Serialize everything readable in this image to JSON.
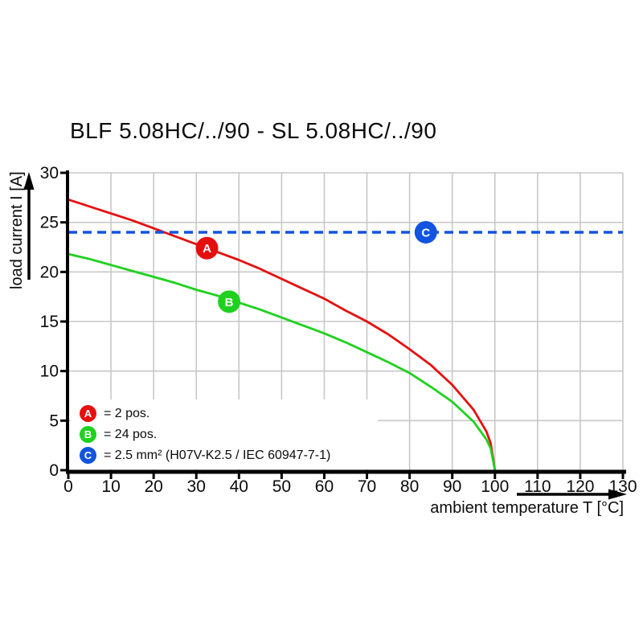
{
  "title": "BLF 5.08HC/../90 - SL 5.08HC/../90",
  "colors": {
    "red": "#e60f0f",
    "green": "#1fd11f",
    "blue": "#1254e0",
    "grid": "#c8c8c8",
    "axis": "#000000",
    "text": "#0b0b0b"
  },
  "x_axis": {
    "label": "ambient temperature T [°C]",
    "ticks": [
      0,
      10,
      20,
      30,
      40,
      50,
      60,
      70,
      80,
      90,
      100,
      110,
      120,
      130
    ]
  },
  "y_axis": {
    "label": "load current I [A]",
    "ticks": [
      0,
      5,
      10,
      15,
      20,
      25,
      30
    ]
  },
  "legend": {
    "items": [
      {
        "marker": "A",
        "color": "#e60f0f",
        "text": "= 2 pos."
      },
      {
        "marker": "B",
        "color": "#1fd11f",
        "text": "= 24 pos."
      },
      {
        "marker": "C",
        "color": "#1254e0",
        "text": "= 2.5 mm² (H07V-K2.5 / IEC 60947-7-1)"
      }
    ]
  },
  "chart_data": {
    "type": "line",
    "title": "BLF 5.08HC/../90 - SL 5.08HC/../90",
    "xlabel": "ambient temperature T [°C]",
    "ylabel": "load current I [A]",
    "xlim": [
      0,
      130
    ],
    "ylim": [
      0,
      30
    ],
    "x_tick_step": 10,
    "y_tick_step": 5,
    "grid": true,
    "legend_position": "bottom-left-inside",
    "series": [
      {
        "name": "A = 2 pos.",
        "color": "#e60f0f",
        "style": "solid",
        "points": [
          [
            0,
            27.3
          ],
          [
            5,
            26.6
          ],
          [
            10,
            25.9
          ],
          [
            15,
            25.2
          ],
          [
            20,
            24.4
          ],
          [
            25,
            23.6
          ],
          [
            30,
            22.8
          ],
          [
            35,
            22.0
          ],
          [
            40,
            21.2
          ],
          [
            45,
            20.3
          ],
          [
            50,
            19.3
          ],
          [
            55,
            18.3
          ],
          [
            60,
            17.3
          ],
          [
            65,
            16.1
          ],
          [
            70,
            15.0
          ],
          [
            75,
            13.7
          ],
          [
            80,
            12.2
          ],
          [
            85,
            10.6
          ],
          [
            90,
            8.6
          ],
          [
            95,
            6.1
          ],
          [
            98,
            3.9
          ],
          [
            99,
            2.7
          ],
          [
            100,
            0
          ]
        ]
      },
      {
        "name": "B = 24 pos.",
        "color": "#1fd11f",
        "style": "solid",
        "points": [
          [
            0,
            21.8
          ],
          [
            5,
            21.3
          ],
          [
            10,
            20.7
          ],
          [
            15,
            20.1
          ],
          [
            20,
            19.5
          ],
          [
            25,
            18.9
          ],
          [
            30,
            18.2
          ],
          [
            35,
            17.6
          ],
          [
            40,
            16.9
          ],
          [
            45,
            16.2
          ],
          [
            50,
            15.4
          ],
          [
            55,
            14.6
          ],
          [
            60,
            13.8
          ],
          [
            65,
            12.9
          ],
          [
            70,
            11.9
          ],
          [
            75,
            10.9
          ],
          [
            80,
            9.8
          ],
          [
            85,
            8.4
          ],
          [
            90,
            6.9
          ],
          [
            95,
            4.9
          ],
          [
            98,
            3.1
          ],
          [
            99,
            2.2
          ],
          [
            100,
            0
          ]
        ]
      },
      {
        "name": "C = 2.5 mm² (H07V-K2.5 / IEC 60947-7-1)",
        "color": "#1254e0",
        "style": "dashed",
        "points": [
          [
            0,
            24
          ],
          [
            130,
            24
          ]
        ]
      }
    ],
    "markers": [
      {
        "label": "A",
        "x": 32.5,
        "y": 22.4,
        "color": "#e60f0f"
      },
      {
        "label": "B",
        "x": 37.7,
        "y": 17.0,
        "color": "#1fd11f"
      },
      {
        "label": "C",
        "x": 83.8,
        "y": 24.0,
        "color": "#1254e0"
      }
    ]
  }
}
